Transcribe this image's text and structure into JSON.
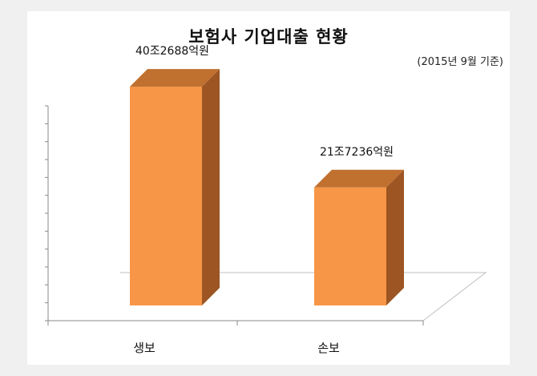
{
  "chart_data": {
    "type": "bar",
    "title": "보험사 기업대출 현황",
    "subtitle": "(2015년 9월 기준)",
    "categories": [
      "생보",
      "손보"
    ],
    "values": [
      40.2688,
      21.7236
    ],
    "data_labels": [
      "40조2688억원",
      "21조7236억원"
    ],
    "xlabel": "",
    "ylabel": "",
    "ylim": [
      0,
      45
    ],
    "grid": false,
    "legend": "none",
    "style": "3d-column",
    "colors": {
      "bar_front": "#f79646",
      "bar_top": "#c0702f",
      "bar_side": "#9c5523",
      "floor": "#bfbfbf"
    }
  }
}
